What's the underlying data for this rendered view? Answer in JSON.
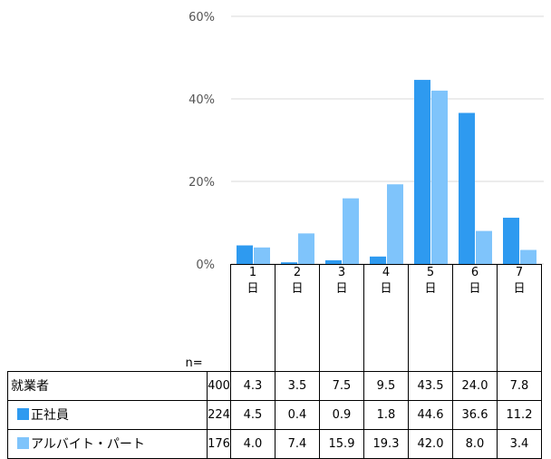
{
  "chart_data": {
    "type": "bar",
    "categories": [
      "1\n日",
      "2\n日",
      "3\n日",
      "4\n日",
      "5\n日",
      "6\n日",
      "7\n日"
    ],
    "y_ticks": [
      "0%",
      "20%",
      "40%",
      "60%"
    ],
    "ylim": [
      0,
      60
    ],
    "grid": true,
    "n_label": "n=",
    "series": [
      {
        "name": "正社員",
        "color": "#2e9af0",
        "values": [
          4.5,
          0.4,
          0.9,
          1.8,
          44.6,
          36.6,
          11.2
        ]
      },
      {
        "name": "アルバイト・パート",
        "color": "#7fc4fb",
        "values": [
          4.0,
          7.4,
          15.9,
          19.3,
          42.0,
          8.0,
          3.4
        ]
      }
    ],
    "table": [
      {
        "label": "就業者",
        "n": "400",
        "values": [
          "4.3",
          "3.5",
          "7.5",
          "9.5",
          "43.5",
          "24.0",
          "7.8"
        ]
      },
      {
        "label": "正社員",
        "n": "224",
        "values": [
          "4.5",
          "0.4",
          "0.9",
          "1.8",
          "44.6",
          "36.6",
          "11.2"
        ]
      },
      {
        "label": "アルバイト・パート",
        "n": "176",
        "values": [
          "4.0",
          "7.4",
          "15.9",
          "19.3",
          "42.0",
          "8.0",
          "3.4"
        ]
      }
    ]
  }
}
